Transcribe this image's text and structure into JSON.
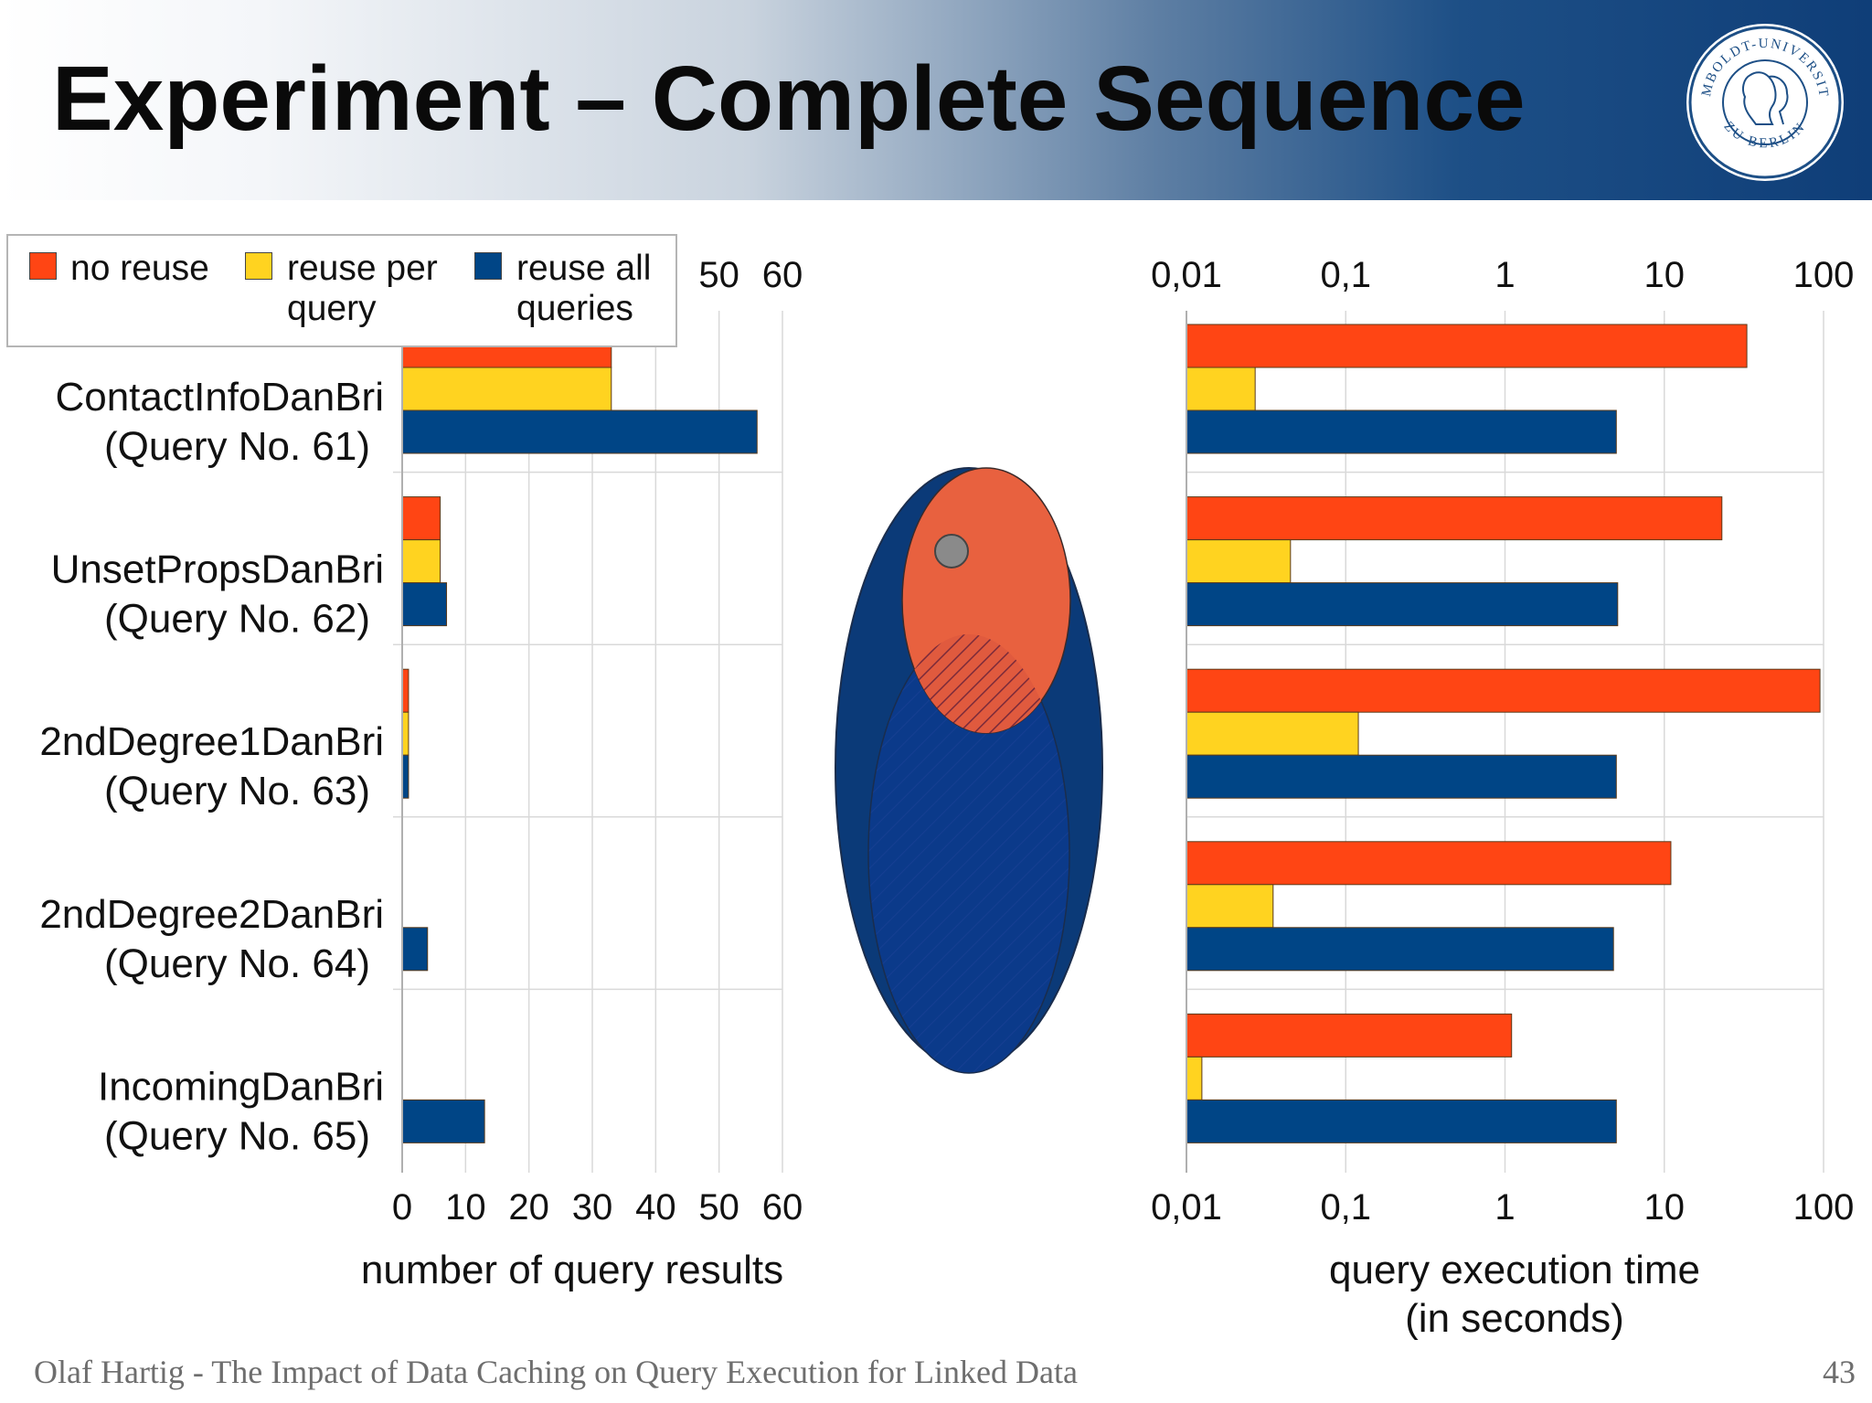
{
  "slide": {
    "title": "Experiment – Complete Sequence",
    "footer": "Olaf Hartig - The Impact of Data Caching on Query Execution for Linked Data",
    "page_number": "43",
    "seal": {
      "top_text": "HUMBOLDT-UNIVERSITÄT",
      "bottom_text": "ZU BERLIN"
    }
  },
  "legend": [
    {
      "label_line1": "no reuse",
      "label_line2": "",
      "color": "#ff4514"
    },
    {
      "label_line1": "reuse per",
      "label_line2": "query",
      "color": "#ffd320"
    },
    {
      "label_line1": "reuse all",
      "label_line2": "queries",
      "color": "#004586"
    }
  ],
  "chart_data": [
    {
      "type": "bar",
      "orientation": "horizontal",
      "categories": [
        {
          "line1": "ContactInfoDanBri",
          "line2": "(Query No. 61)"
        },
        {
          "line1": "UnsetPropsDanBri",
          "line2": "(Query No. 62)"
        },
        {
          "line1": "2ndDegree1DanBri",
          "line2": "(Query No. 63)"
        },
        {
          "line1": "2ndDegree2DanBri",
          "line2": "(Query No. 64)"
        },
        {
          "line1": "IncomingDanBri",
          "line2": "(Query No. 65)"
        }
      ],
      "series": [
        {
          "name": "no reuse",
          "color": "#ff4514",
          "values": [
            33,
            6,
            1,
            0,
            0
          ]
        },
        {
          "name": "reuse per query",
          "color": "#ffd320",
          "values": [
            33,
            6,
            1,
            0,
            0
          ]
        },
        {
          "name": "reuse all queries",
          "color": "#004586",
          "values": [
            56,
            7,
            1,
            4,
            13
          ]
        }
      ],
      "xlim": [
        0,
        60
      ],
      "xticks": [
        "0",
        "10",
        "20",
        "30",
        "40",
        "50",
        "60"
      ],
      "xlabel": "number of query results",
      "grid": true,
      "scale": "linear"
    },
    {
      "type": "bar",
      "orientation": "horizontal",
      "categories": [
        {
          "line1": "ContactInfoDanBri",
          "line2": "(Query No. 61)"
        },
        {
          "line1": "UnsetPropsDanBri",
          "line2": "(Query No. 62)"
        },
        {
          "line1": "2ndDegree1DanBri",
          "line2": "(Query No. 63)"
        },
        {
          "line1": "2ndDegree2DanBri",
          "line2": "(Query No. 64)"
        },
        {
          "line1": "IncomingDanBri",
          "line2": "(Query No. 65)"
        }
      ],
      "series": [
        {
          "name": "no reuse",
          "color": "#ff4514",
          "values": [
            33,
            23,
            95,
            11,
            1.1
          ]
        },
        {
          "name": "reuse per query",
          "color": "#ffd320",
          "values": [
            0.027,
            0.045,
            0.12,
            0.035,
            0.0125
          ]
        },
        {
          "name": "reuse all queries",
          "color": "#004586",
          "values": [
            5,
            5.1,
            5,
            4.8,
            5
          ]
        }
      ],
      "xlim": [
        0.01,
        100
      ],
      "xticks": [
        "0,01",
        "0,1",
        "1",
        "10",
        "100"
      ],
      "xlabel_line1": "query execution time",
      "xlabel_line2": "(in seconds)",
      "grid": true,
      "scale": "log"
    }
  ]
}
